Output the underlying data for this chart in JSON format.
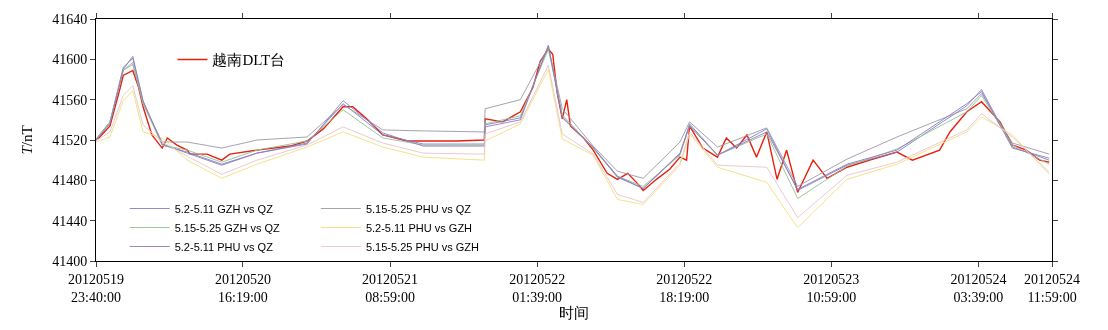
{
  "chart_data": {
    "type": "line",
    "xlabel": "时间",
    "ylabel": "T/nT",
    "legend": "left",
    "line_style": "solid",
    "marker": "none",
    "xlim": [
      "2012-05-19T23:40",
      "2012-05-24T11:59"
    ],
    "xticks": [
      {
        "value": "2012-05-19T23:40",
        "label": "20120519\n23:40:00"
      },
      {
        "value": "2012-05-20T16:19",
        "label": "20120520\n16:19:00"
      },
      {
        "value": "2012-05-21T08:59",
        "label": "20120521\n08:59:00"
      },
      {
        "value": "2012-05-22T01:39",
        "label": "20120522\n01:39:00"
      },
      {
        "value": "2012-05-22T18:19",
        "label": "20120522\n18:19:00"
      },
      {
        "value": "2012-05-23T10:59",
        "label": "20120523\n10:59:00"
      },
      {
        "value": "2012-05-24T03:39",
        "label": "20120524\n03:39:00"
      },
      {
        "value": "2012-05-24T11:59",
        "label": "20120524\n11:59:00"
      }
    ],
    "ylim": [
      41400,
      41640
    ],
    "yticks": [
      41400,
      41440,
      41480,
      41520,
      41560,
      41600,
      41640
    ],
    "series": [
      {
        "name": "越南DLT台",
        "color": "#e8200c",
        "x": [
          "2012-05-19T23:40",
          "2012-05-20T00:00",
          "2012-05-20T01:15",
          "2012-05-20T02:25",
          "2012-05-20T02:45",
          "2012-05-20T03:50",
          "2012-05-20T04:30",
          "2012-05-20T05:00",
          "2012-05-20T06:00",
          "2012-05-20T07:10",
          "2012-05-20T07:45",
          "2012-05-20T08:50",
          "2012-05-20T10:00",
          "2012-05-20T10:20",
          "2012-05-20T12:15",
          "2012-05-20T13:55",
          "2012-05-20T14:50",
          "2012-05-20T17:55",
          "2012-05-20T21:40",
          "2012-05-20T23:35",
          "2012-05-21T01:25",
          "2012-05-21T03:40",
          "2012-05-21T04:45",
          "2012-05-21T06:20",
          "2012-05-21T08:10",
          "2012-05-21T10:55",
          "2012-05-21T12:45",
          "2012-05-21T16:35",
          "2012-05-21T19:40",
          "2012-05-21T19:45",
          "2012-05-21T21:45",
          "2012-05-21T23:45",
          "2012-05-22T01:10",
          "2012-05-22T02:00",
          "2012-05-22T02:55",
          "2012-05-22T03:25",
          "2012-05-22T03:55",
          "2012-05-22T04:30",
          "2012-05-22T05:00",
          "2012-05-22T05:25",
          "2012-05-22T06:55",
          "2012-05-22T08:00",
          "2012-05-22T09:35",
          "2012-05-22T10:45",
          "2012-05-22T11:55",
          "2012-05-22T13:00",
          "2012-05-22T13:40",
          "2012-05-22T15:10",
          "2012-05-22T16:40",
          "2012-05-22T17:50",
          "2012-05-22T18:35",
          "2012-05-22T18:55",
          "2012-05-22T20:25",
          "2012-05-22T22:05",
          "2012-05-22T23:05",
          "2012-05-23T00:15",
          "2012-05-23T01:25",
          "2012-05-23T02:30",
          "2012-05-23T03:40",
          "2012-05-23T04:50",
          "2012-05-23T05:55",
          "2012-05-23T07:10",
          "2012-05-23T08:55",
          "2012-05-23T10:30",
          "2012-05-23T12:45",
          "2012-05-23T15:20",
          "2012-05-23T18:25",
          "2012-05-23T20:10",
          "2012-05-23T23:15",
          "2012-05-24T00:25",
          "2012-05-24T02:20",
          "2012-05-24T04:00",
          "2012-05-24T06:05",
          "2012-05-24T07:30",
          "2012-05-24T09:05",
          "2012-05-24T10:35",
          "2012-05-24T11:40"
        ],
        "values": [
          41521,
          41522,
          41534,
          41572,
          41584,
          41589,
          41572,
          41553,
          41525,
          41512,
          41522,
          41515,
          41510,
          41506,
          41506,
          41500,
          41506,
          41510,
          41514,
          41519,
          41531,
          41553,
          41553,
          41541,
          41525,
          41519,
          41519,
          41519,
          41520,
          41541,
          41538,
          41548,
          41572,
          41598,
          41610,
          41605,
          41567,
          41541,
          41560,
          41534,
          41522,
          41510,
          41487,
          41481,
          41487,
          41477,
          41470,
          41481,
          41491,
          41503,
          41500,
          41534,
          41512,
          41503,
          41522,
          41512,
          41525,
          41503,
          41528,
          41481,
          41510,
          41468,
          41500,
          41482,
          41493,
          41500,
          41508,
          41500,
          41510,
          41528,
          41548,
          41558,
          41538,
          41515,
          41510,
          41500,
          41498
        ]
      },
      {
        "name": "5.2-5.11 GZH vs QZ",
        "color": "#7f7fcf",
        "values": [
          41519,
          41538,
          41592,
          41601,
          41558,
          41515,
          41508,
          41496,
          41507,
          41517,
          41556,
          41525,
          41516,
          41516,
          41535,
          41542,
          41613,
          41543,
          41512,
          41483,
          41472,
          41506,
          41536,
          41505,
          41531,
          41470,
          41495,
          41508,
          41554,
          41570,
          41513,
          41500
        ]
      },
      {
        "name": "5.15-5.25 PHU vs QZ",
        "color": "#9a9aa8",
        "values": [
          41521,
          41538,
          41589,
          41595,
          41556,
          41518,
          41518,
          41512,
          41520,
          41523,
          41555,
          41530,
          41529,
          41528,
          41551,
          41560,
          41612,
          41551,
          41514,
          41489,
          41482,
          41518,
          41538,
          41513,
          41532,
          41474,
          41501,
          41523,
          41551,
          41566,
          41517,
          41506
        ]
      },
      {
        "name": "5.15-5.25 GZH vs QZ",
        "color": "#8fc48f",
        "values": [
          41521,
          41538,
          41589,
          41597,
          41556,
          41515,
          41510,
          41498,
          41510,
          41519,
          41550,
          41522,
          41515,
          41515,
          41536,
          41544,
          41610,
          41545,
          41512,
          41484,
          41474,
          41505,
          41534,
          41505,
          41526,
          41462,
          41494,
          41511,
          41548,
          41564,
          41515,
          41496
        ]
      },
      {
        "name": "5.2-5.11 PHU vs GZH",
        "color": "#f2e07a",
        "values": [
          41518,
          41523,
          41559,
          41569,
          41528,
          41522,
          41500,
          41482,
          41496,
          41513,
          41528,
          41513,
          41503,
          41500,
          41519,
          41536,
          41590,
          41521,
          41505,
          41461,
          41456,
          41495,
          41526,
          41493,
          41478,
          41433,
          41481,
          41496,
          41528,
          41543,
          41525,
          41486
        ]
      },
      {
        "name": "5.2-5.11 PHU vs QZ",
        "color": "#9478b8",
        "values": [
          41520,
          41536,
          41590,
          41603,
          41559,
          41516,
          41507,
          41495,
          41507,
          41516,
          41559,
          41527,
          41514,
          41514,
          41533,
          41540,
          41614,
          41542,
          41513,
          41484,
          41472,
          41507,
          41534,
          41505,
          41528,
          41471,
          41496,
          41510,
          41556,
          41568,
          41512,
          41502
        ]
      },
      {
        "name": "5.15-5.25 PHU vs GZH",
        "color": "#e8c4cc",
        "values": [
          41519,
          41528,
          41564,
          41574,
          41535,
          41518,
          41504,
          41486,
          41500,
          41515,
          41533,
          41517,
          41507,
          41506,
          41526,
          41538,
          41594,
          41526,
          41506,
          41466,
          41458,
          41497,
          41528,
          41495,
          41493,
          41443,
          41485,
          41498,
          41530,
          41546,
          41523,
          41488
        ]
      }
    ],
    "x": [
      "2012-05-19T23:40",
      "2012-05-20T01:15",
      "2012-05-20T02:45",
      "2012-05-20T03:50",
      "2012-05-20T05:00",
      "2012-05-20T07:10",
      "2012-05-20T10:00",
      "2012-05-20T13:55",
      "2012-05-20T17:55",
      "2012-05-20T23:35",
      "2012-05-21T03:40",
      "2012-05-21T08:10",
      "2012-05-21T12:45",
      "2012-05-21T19:40",
      "2012-05-21T19:45",
      "2012-05-21T23:45",
      "2012-05-22T02:55",
      "2012-05-22T04:30",
      "2012-05-22T08:00",
      "2012-05-22T10:45",
      "2012-05-22T13:40",
      "2012-05-22T17:50",
      "2012-05-22T18:55",
      "2012-05-22T22:05",
      "2012-05-23T03:40",
      "2012-05-23T07:10",
      "2012-05-23T12:45",
      "2012-05-23T18:25",
      "2012-05-24T02:20",
      "2012-05-24T04:00",
      "2012-05-24T07:30",
      "2012-05-24T11:40"
    ]
  }
}
